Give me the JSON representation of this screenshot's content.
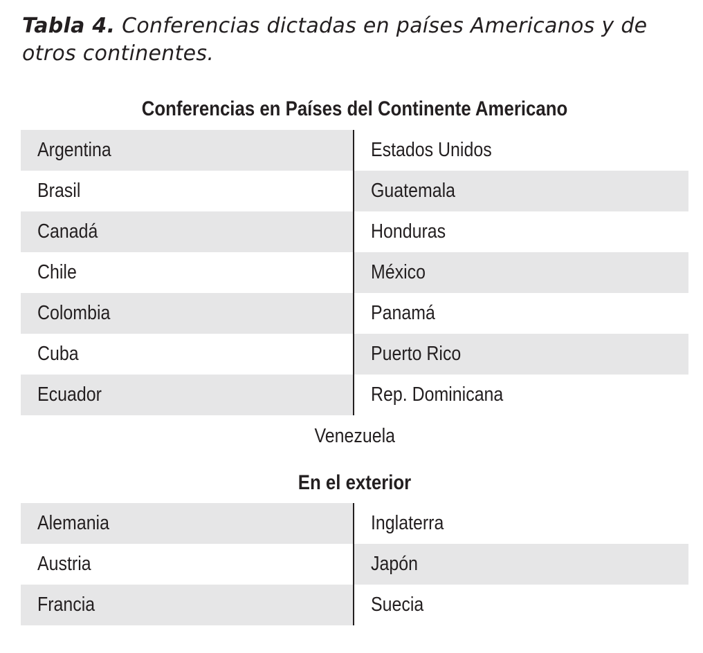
{
  "caption": {
    "label": "Tabla 4.",
    "text": "Conferencias dictadas en países Americanos y de otros continentes."
  },
  "america": {
    "title": "Conferencias en Países del Continente Americano",
    "rows": [
      {
        "left": "Argentina",
        "right": "Estados Unidos"
      },
      {
        "left": "Brasil",
        "right": "Guatemala"
      },
      {
        "left": "Canadá",
        "right": "Honduras"
      },
      {
        "left": "Chile",
        "right": "México"
      },
      {
        "left": "Colombia",
        "right": "Panamá"
      },
      {
        "left": "Cuba",
        "right": "Puerto Rico"
      },
      {
        "left": "Ecuador",
        "right": "Rep. Dominicana"
      }
    ],
    "last": "Venezuela"
  },
  "exterior": {
    "title": "En el exterior",
    "rows": [
      {
        "left": "Alemania",
        "right": "Inglaterra"
      },
      {
        "left": "Austria",
        "right": "Japón"
      },
      {
        "left": "Francia",
        "right": "Suecia"
      }
    ]
  },
  "colors": {
    "shade": "#e6e6e7",
    "text": "#231f20"
  }
}
